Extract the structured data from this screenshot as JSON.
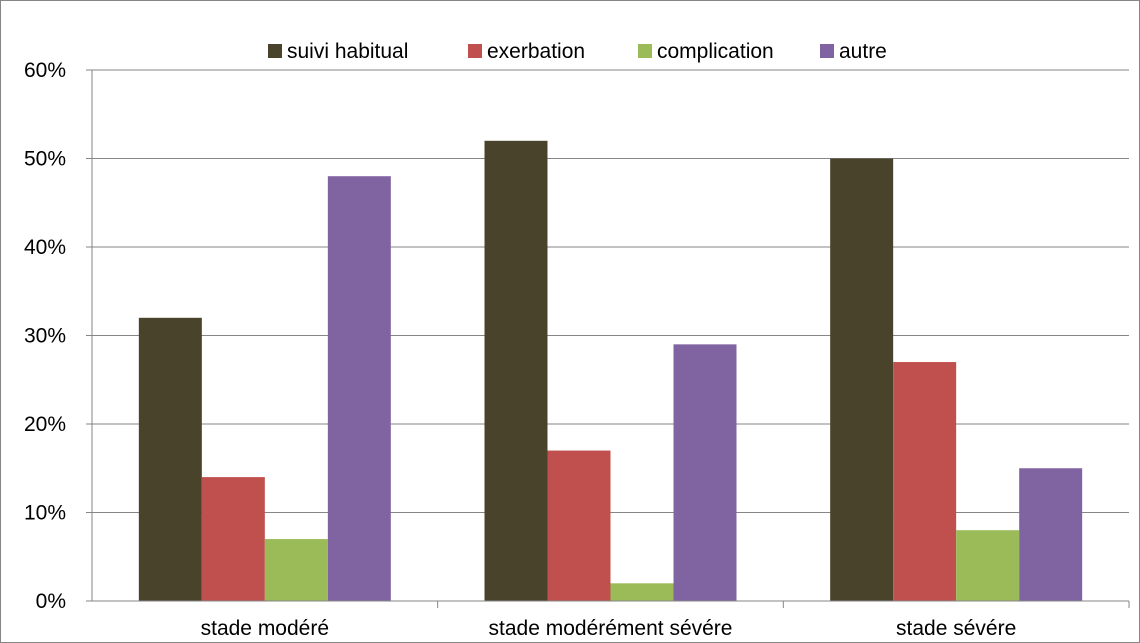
{
  "chart_data": {
    "type": "bar",
    "categories": [
      "stade modéré",
      "stade modérément sévére",
      "stade sévére"
    ],
    "series": [
      {
        "name": "suivi habitual",
        "values": [
          32,
          52,
          50
        ],
        "color": "#49432B"
      },
      {
        "name": "exerbation",
        "values": [
          14,
          17,
          27
        ],
        "color": "#C0504D"
      },
      {
        "name": "complication",
        "values": [
          7,
          2,
          8
        ],
        "color": "#9BBB59"
      },
      {
        "name": "autre",
        "values": [
          48,
          29,
          15
        ],
        "color": "#8064A2"
      }
    ],
    "y_ticks": [
      "0%",
      "10%",
      "20%",
      "30%",
      "40%",
      "50%",
      "60%"
    ],
    "ylim": [
      0,
      60
    ],
    "y_unit": "%",
    "grid": true,
    "legend_position": "top",
    "title": "",
    "xlabel": "",
    "ylabel": ""
  }
}
